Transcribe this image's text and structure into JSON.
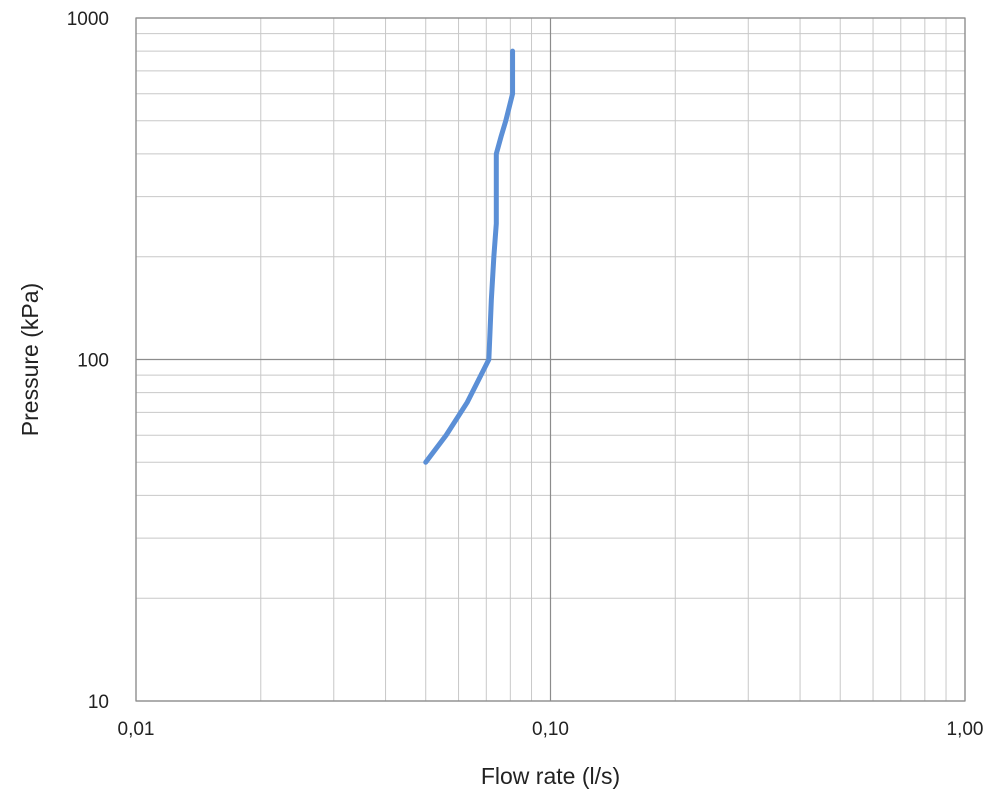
{
  "chart_data": {
    "type": "line",
    "title": "",
    "xlabel": "Flow rate (l/s)",
    "ylabel": "Pressure (kPa)",
    "x_scale": "log",
    "y_scale": "log",
    "xlim": [
      0.01,
      1.0
    ],
    "ylim": [
      10,
      1000
    ],
    "x_ticks": [
      0.01,
      0.1,
      1.0
    ],
    "x_tick_labels": [
      "0,01",
      "0,10",
      "1,00"
    ],
    "y_ticks": [
      10,
      100,
      1000
    ],
    "y_tick_labels": [
      "10",
      "100",
      "1000"
    ],
    "grid": true,
    "legend": "none",
    "series": [
      {
        "color": "#5b8fd6",
        "x": [
          0.05,
          0.056,
          0.063,
          0.071,
          0.072,
          0.073,
          0.074,
          0.074,
          0.074,
          0.076,
          0.078,
          0.081,
          0.081,
          0.081
        ],
        "y": [
          50,
          60,
          75,
          100,
          150,
          200,
          250,
          300,
          400,
          450,
          500,
          600,
          700,
          800
        ]
      }
    ],
    "colors": {
      "grid_major": "#8c8c8c",
      "grid_minor": "#c8c8c8",
      "text": "#222222"
    }
  }
}
